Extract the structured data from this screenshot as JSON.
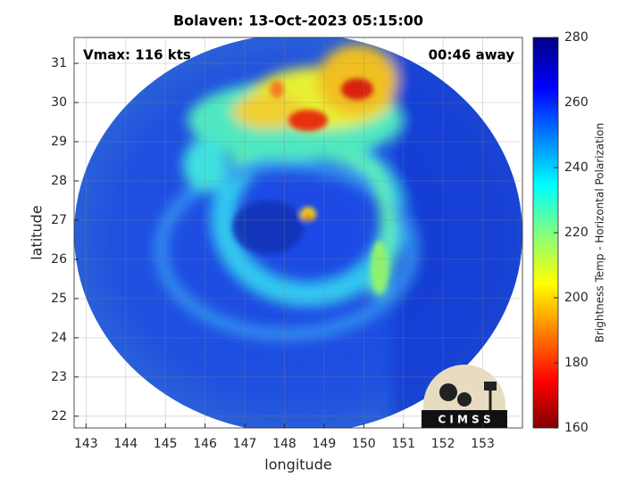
{
  "chart_data": {
    "type": "image",
    "title": "Bolaven: 13-Oct-2023 05:15:00",
    "annotations": [
      "Vmax: 116 kts",
      "00:46 away"
    ],
    "x_label": "longitude",
    "y_label": "latitude",
    "xlim": [
      142.7,
      154
    ],
    "xticks": [
      143,
      144,
      145,
      146,
      147,
      148,
      149,
      150,
      151,
      152,
      153
    ],
    "ylim": [
      21.7,
      31.66
    ],
    "yticks": [
      22,
      23,
      24,
      25,
      26,
      27,
      28,
      29,
      30,
      31
    ],
    "grid": true,
    "colorbar": {
      "label": "Brightness Temp - Horizontal Polarization",
      "lim": [
        160,
        280
      ],
      "ticks": [
        160,
        180,
        200,
        220,
        240,
        260,
        280
      ],
      "colormap": "jet"
    },
    "logo": "C I M S S"
  }
}
